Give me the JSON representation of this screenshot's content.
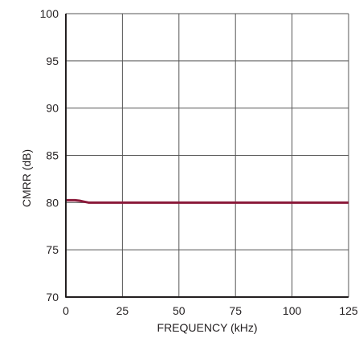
{
  "chart_data": {
    "type": "line",
    "title": "",
    "xlabel": "FREQUENCY (kHz)",
    "ylabel": "CMRR (dB)",
    "xlim": [
      0,
      125
    ],
    "ylim": [
      70,
      100
    ],
    "x_ticks": [
      0,
      25,
      50,
      75,
      100,
      125
    ],
    "y_ticks": [
      70,
      75,
      80,
      85,
      90,
      95,
      100
    ],
    "grid": true,
    "legend": "none",
    "series": [
      {
        "color": "#8b1a3a",
        "x": [
          0,
          4,
          6,
          8,
          10,
          15,
          25,
          50,
          75,
          100,
          125
        ],
        "y": [
          80.25,
          80.25,
          80.2,
          80.1,
          80.0,
          80.0,
          80.0,
          80.0,
          80.0,
          80.0,
          80.0
        ]
      }
    ],
    "colors": {
      "grid": "#555555",
      "axis": "#231f20",
      "text": "#231f20"
    }
  }
}
